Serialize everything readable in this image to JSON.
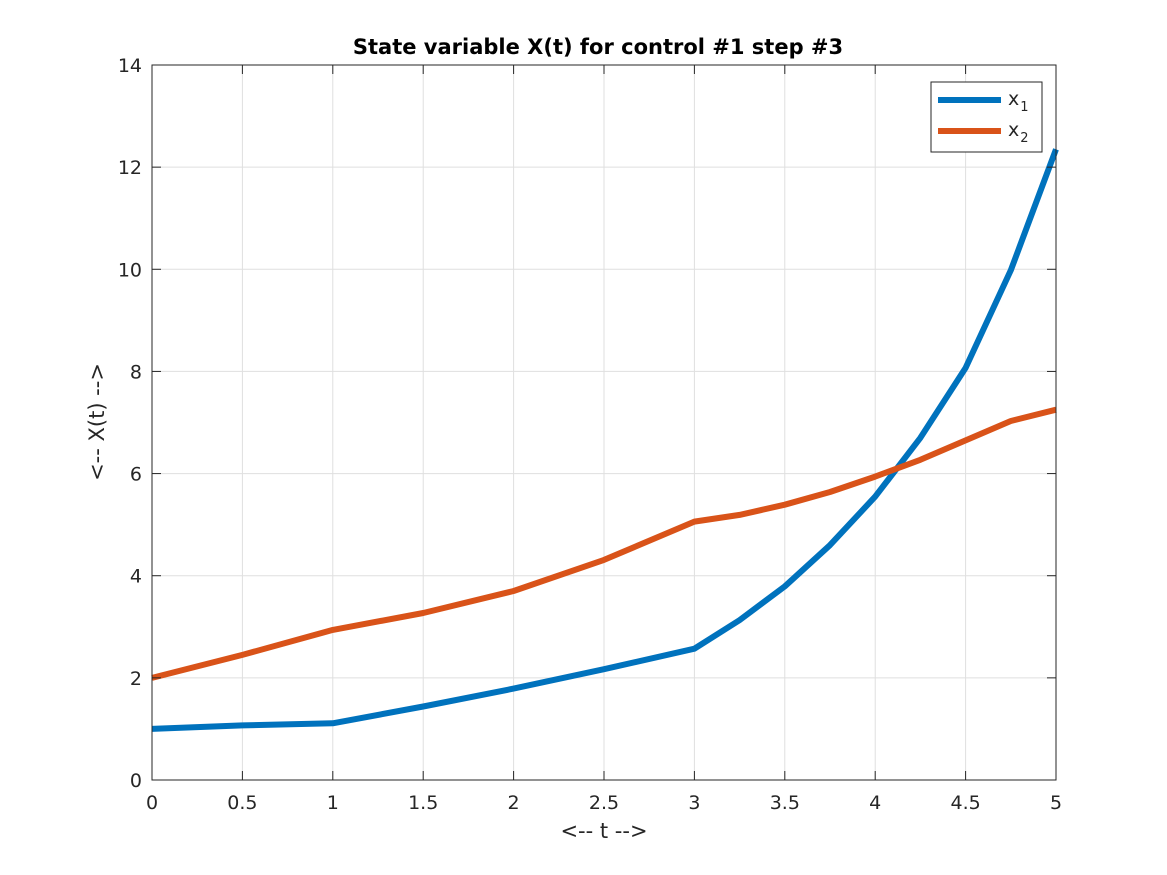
{
  "chart_data": {
    "type": "line",
    "title": "State variable X(t) for control #1 step #3",
    "xlabel": "<-- t -->",
    "ylabel": "<-- X(t) -->",
    "xlim": [
      0,
      5
    ],
    "ylim": [
      0,
      14
    ],
    "xticks": [
      0,
      0.5,
      1,
      1.5,
      2,
      2.5,
      3,
      3.5,
      4,
      4.5,
      5
    ],
    "xtick_labels": [
      "0",
      "0.5",
      "1",
      "1.5",
      "2",
      "2.5",
      "3",
      "3.5",
      "4",
      "4.5",
      "5"
    ],
    "yticks": [
      0,
      2,
      4,
      6,
      8,
      10,
      12,
      14
    ],
    "ytick_labels": [
      "0",
      "2",
      "4",
      "6",
      "8",
      "10",
      "12",
      "14"
    ],
    "grid": true,
    "legend_position": "top-right",
    "series": [
      {
        "name": "x",
        "subscript": "1",
        "color": "#0072BD",
        "x": [
          0,
          0.5,
          1,
          1.5,
          2,
          2.5,
          3,
          3.25,
          3.5,
          3.75,
          4,
          4.25,
          4.5,
          4.75,
          5
        ],
        "y": [
          1.0,
          1.07,
          1.11,
          1.44,
          1.79,
          2.17,
          2.57,
          3.13,
          3.79,
          4.6,
          5.55,
          6.7,
          8.07,
          9.98,
          12.35
        ]
      },
      {
        "name": "x",
        "subscript": "2",
        "color": "#D95319",
        "x": [
          0,
          0.5,
          1,
          1.5,
          2,
          2.5,
          3,
          3.25,
          3.5,
          3.75,
          4,
          4.25,
          4.5,
          4.75,
          5
        ],
        "y": [
          2.0,
          2.45,
          2.94,
          3.27,
          3.7,
          4.31,
          5.06,
          5.19,
          5.39,
          5.64,
          5.94,
          6.27,
          6.65,
          7.03,
          7.25
        ]
      }
    ]
  }
}
